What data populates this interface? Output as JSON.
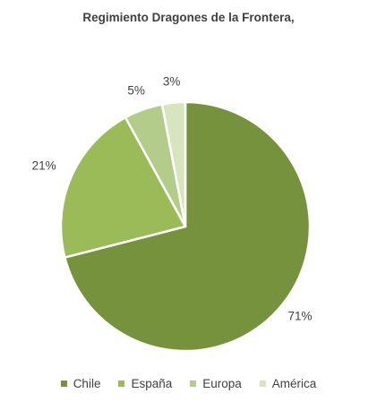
{
  "chart_data": {
    "type": "pie",
    "title": "Regimiento Dragones de la Frontera,",
    "categories": [
      "Chile",
      "España",
      "Europa",
      "América"
    ],
    "values": [
      71,
      21,
      5,
      3
    ],
    "data_labels": [
      "71%",
      "21%",
      "5%",
      "3%"
    ],
    "colors": [
      "#76923c",
      "#9bbb59",
      "#b3cc8a",
      "#d7e4bd"
    ],
    "start_angle_deg": 0,
    "direction": "clockwise",
    "legend_position": "bottom"
  }
}
